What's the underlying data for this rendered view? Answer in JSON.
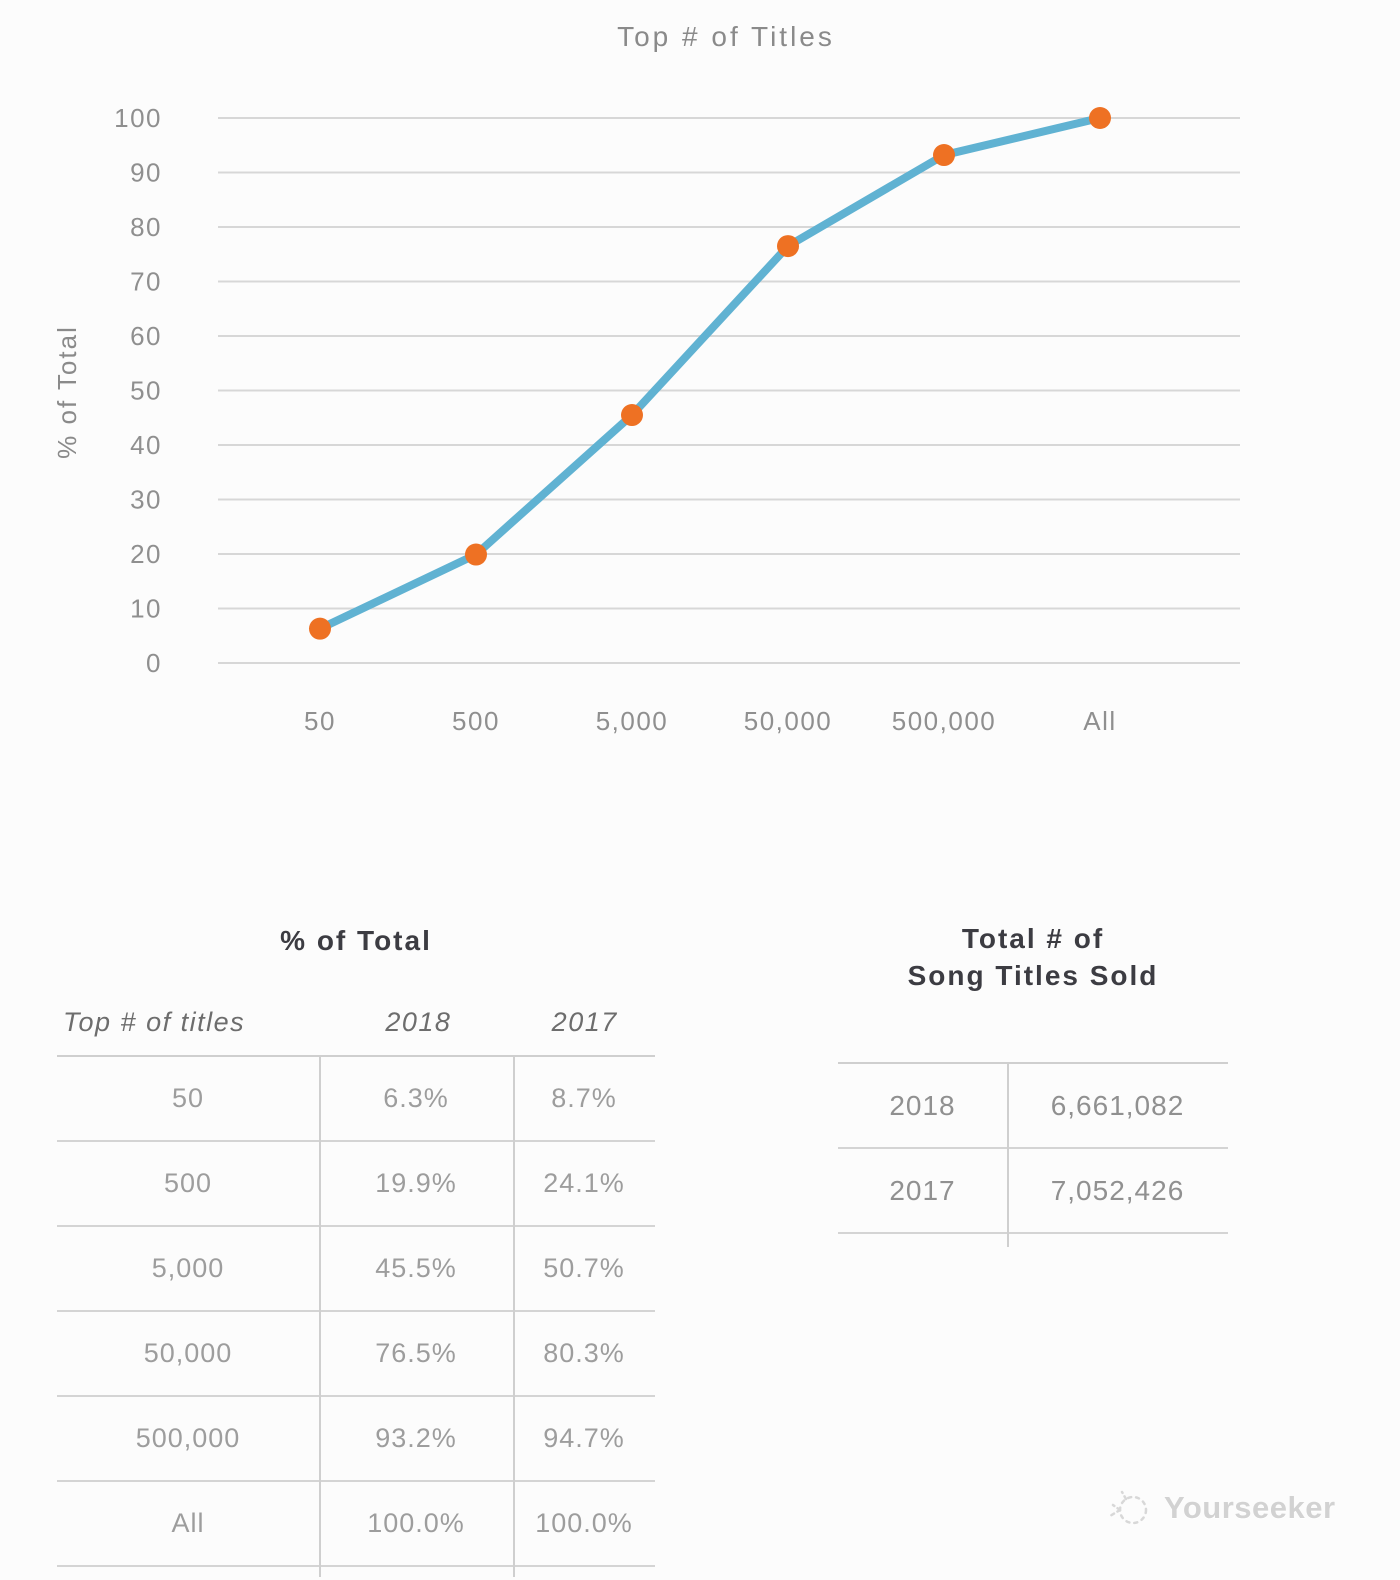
{
  "chart_data": {
    "type": "line",
    "title": "Top # of Titles",
    "ylabel": "% of Total",
    "categories": [
      "50",
      "500",
      "5,000",
      "50,000",
      "500,000",
      "All"
    ],
    "series": [
      {
        "name": "2018",
        "values": [
          6.3,
          19.9,
          45.5,
          76.5,
          93.2,
          100.0
        ]
      }
    ],
    "ylim": [
      0,
      100
    ],
    "ytick_step": 10,
    "grid": true,
    "legend_position": "none",
    "line_color": "#60b2d2",
    "marker_color": "#ee7123",
    "gridline_color": "#d7d7d7"
  },
  "percent_table": {
    "title": "% of Total",
    "columns": [
      "Top # of titles",
      "2018",
      "2017"
    ],
    "rows": [
      {
        "titles": "50",
        "y2018": "6.3%",
        "y2017": "8.7%"
      },
      {
        "titles": "500",
        "y2018": "19.9%",
        "y2017": "24.1%"
      },
      {
        "titles": "5,000",
        "y2018": "45.5%",
        "y2017": "50.7%"
      },
      {
        "titles": "50,000",
        "y2018": "76.5%",
        "y2017": "80.3%"
      },
      {
        "titles": "500,000",
        "y2018": "93.2%",
        "y2017": "94.7%"
      },
      {
        "titles": "All",
        "y2018": "100.0%",
        "y2017": "100.0%"
      }
    ]
  },
  "totals_table": {
    "title_line1": "Total # of",
    "title_line2": "Song Titles Sold",
    "rows": [
      {
        "year": "2018",
        "value": "6,661,082"
      },
      {
        "year": "2017",
        "value": "7,052,426"
      }
    ]
  },
  "watermark": {
    "text": "Yourseeker"
  }
}
